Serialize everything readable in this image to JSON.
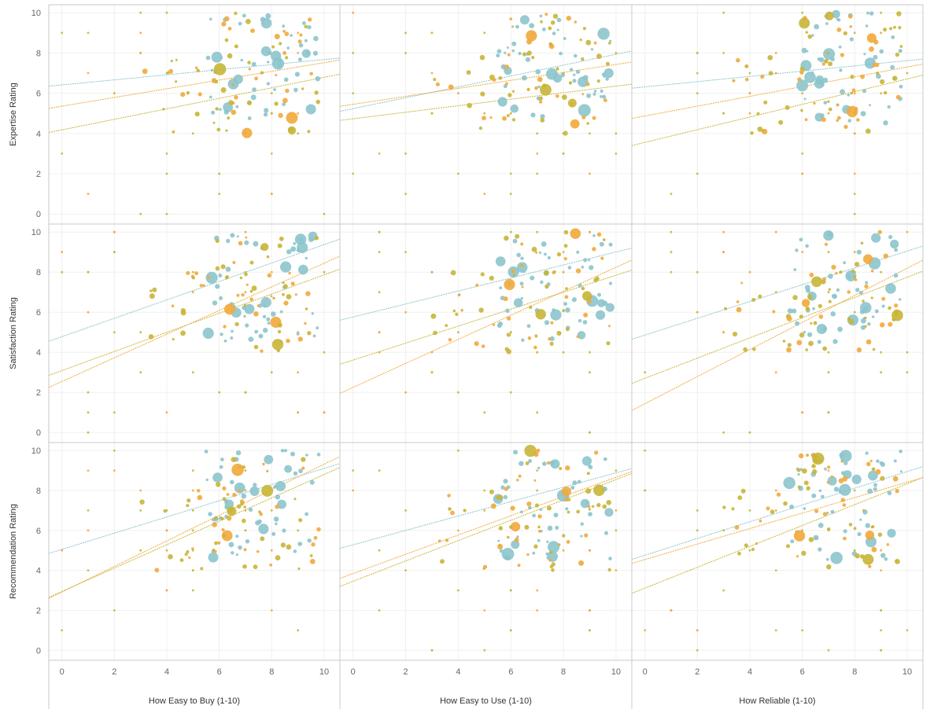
{
  "chart_data": {
    "type": "scatter",
    "x_axes": [
      "How Easy to Buy (1-10)",
      "How Easy to Use (1-10)",
      "How Reliable (1-10)"
    ],
    "y_axes": [
      "Expertise Rating",
      "Satisfaction Rating",
      "Recommendation Rating"
    ],
    "x_ticks": [
      "0",
      "2",
      "4",
      "6",
      "8",
      "10"
    ],
    "y_ticks": [
      "0",
      "2",
      "4",
      "6",
      "8",
      "10"
    ],
    "xlim": [
      -0.5,
      10.6
    ],
    "ylim": [
      -0.5,
      10.4
    ],
    "colors": {
      "teal": "#8cc4cc",
      "orange": "#f2a93b",
      "olive": "#c8b536"
    },
    "trend_lines": [
      [
        [
          [
            6.35,
            7.75
          ],
          [
            5.25,
            7.65
          ],
          [
            4.05,
            6.95
          ]
        ],
        [
          [
            4.55,
            9.65
          ],
          [
            2.25,
            8.8
          ],
          [
            2.85,
            8.15
          ]
        ],
        [
          [
            4.85,
            9.35
          ],
          [
            2.6,
            9.7
          ],
          [
            2.65,
            9.15
          ]
        ]
      ],
      [
        [
          [
            5.1,
            8.1
          ],
          [
            5.35,
            7.55
          ],
          [
            4.65,
            6.45
          ]
        ],
        [
          [
            5.6,
            9.2
          ],
          [
            1.95,
            8.6
          ],
          [
            3.4,
            8.1
          ]
        ],
        [
          [
            5.1,
            9.1
          ],
          [
            3.6,
            8.95
          ],
          [
            3.2,
            8.85
          ]
        ]
      ],
      [
        [
          [
            6.25,
            7.7
          ],
          [
            4.75,
            7.45
          ],
          [
            3.4,
            6.9
          ]
        ],
        [
          [
            4.65,
            9.3
          ],
          [
            1.1,
            8.6
          ],
          [
            2.45,
            8.05
          ]
        ],
        [
          [
            4.55,
            9.2
          ],
          [
            4.35,
            8.65
          ],
          [
            2.85,
            8.65
          ]
        ]
      ]
    ],
    "clusters": [
      {
        "x": [
          5.5,
          9.8
        ],
        "y": [
          4.5,
          10.0
        ],
        "n": 55,
        "color": "teal",
        "big": 10
      },
      {
        "x": [
          5.8,
          9.8
        ],
        "y": [
          4.0,
          10.0
        ],
        "n": 24,
        "color": "orange",
        "big": 2
      },
      {
        "x": [
          5.8,
          9.8
        ],
        "y": [
          4.0,
          10.0
        ],
        "n": 28,
        "color": "olive",
        "big": 2
      },
      {
        "x": [
          3.0,
          6.0
        ],
        "y": [
          4.0,
          8.0
        ],
        "n": 10,
        "color": "olive",
        "big": 0
      },
      {
        "x": [
          3.0,
          6.0
        ],
        "y": [
          4.0,
          8.0
        ],
        "n": 6,
        "color": "orange",
        "big": 0
      },
      {
        "x": [
          0.0,
          10.0
        ],
        "y": [
          0.0,
          10.0
        ],
        "n": 26,
        "color": "olive",
        "big": 0,
        "grid": true
      },
      {
        "x": [
          0.0,
          10.0
        ],
        "y": [
          0.0,
          10.0
        ],
        "n": 10,
        "color": "orange",
        "big": 0,
        "grid": true
      }
    ]
  }
}
